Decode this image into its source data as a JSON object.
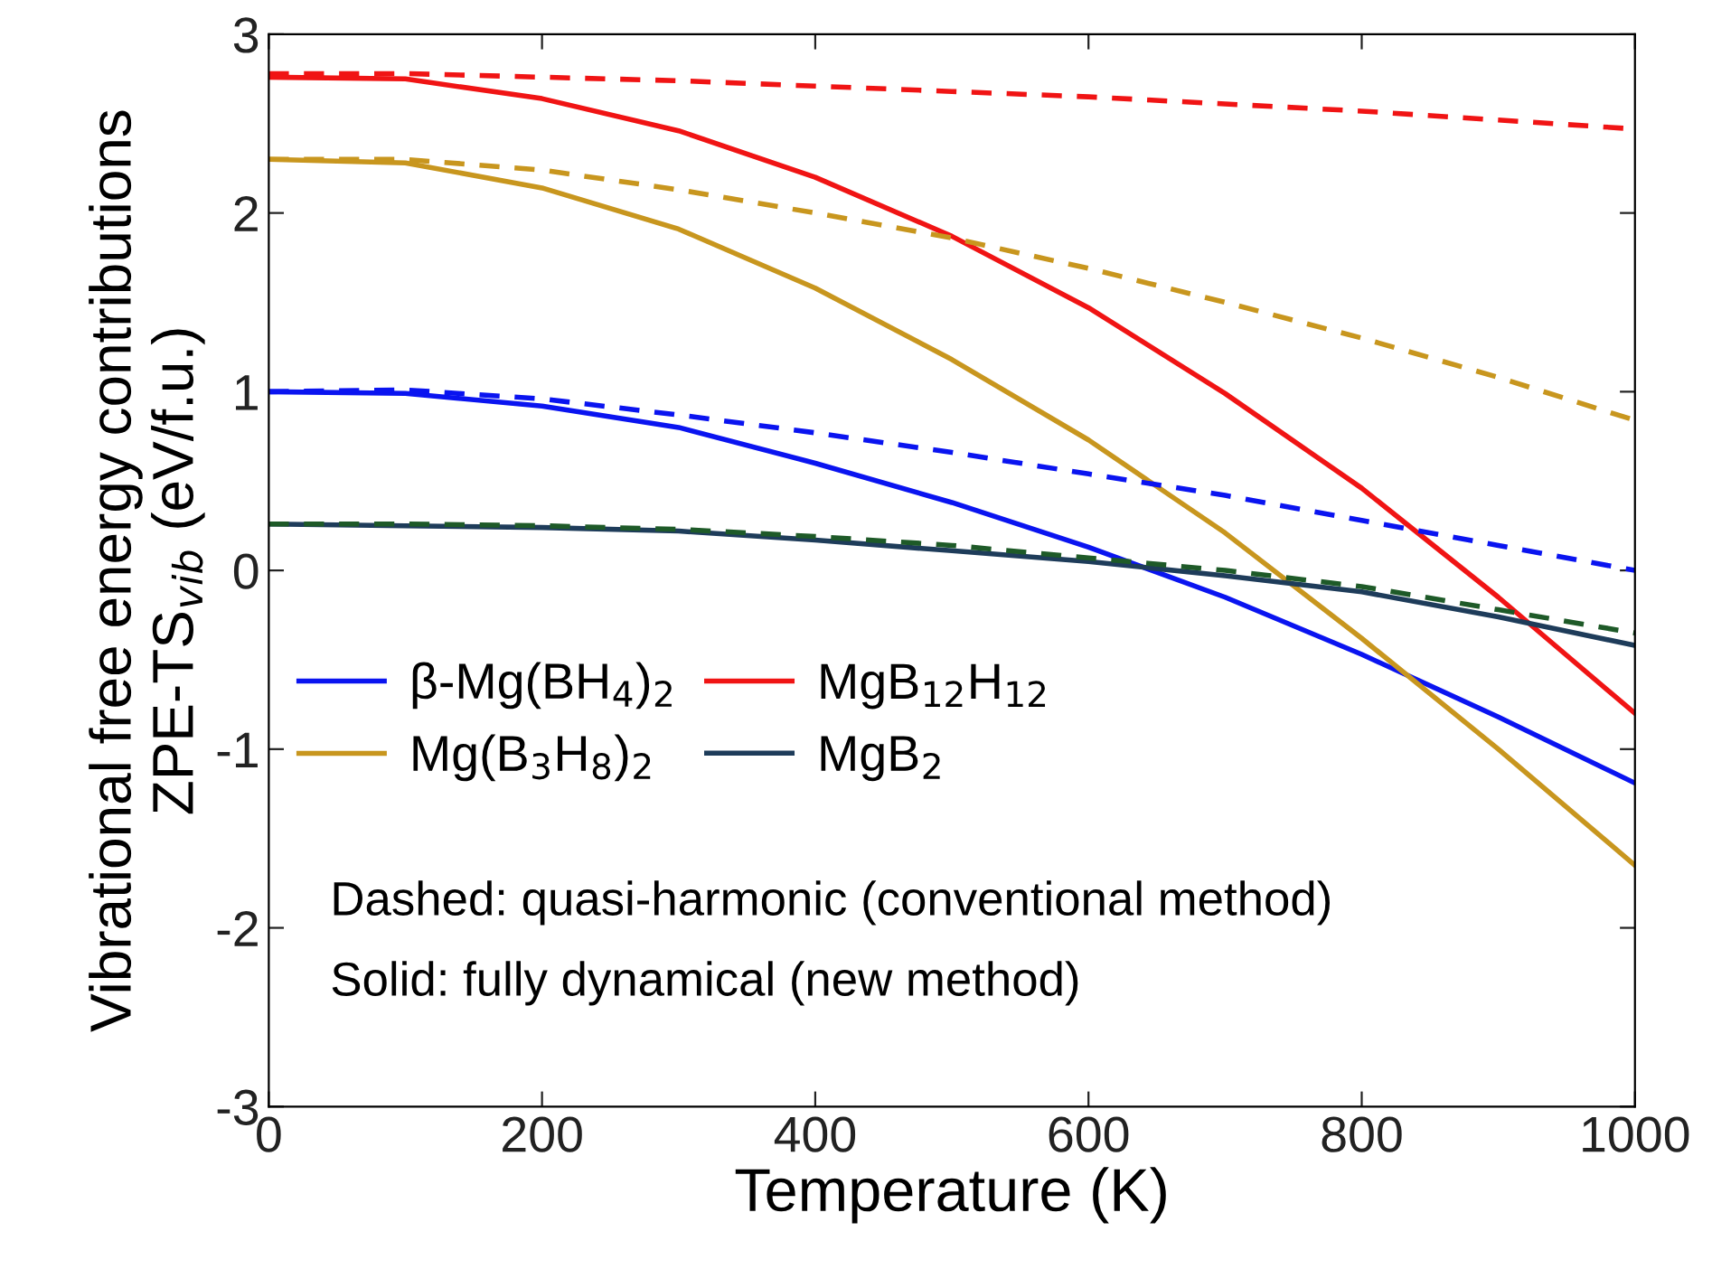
{
  "chart_data": {
    "type": "line",
    "xlabel": "Temperature (K)",
    "ylabel": "Vibrational free energy contributions\nZPE-TS$_{vib}$ (eV/f.u.)",
    "x": [
      0,
      100,
      200,
      300,
      400,
      500,
      600,
      700,
      800,
      900,
      1000
    ],
    "xlim": [
      0,
      1000
    ],
    "xticks": [
      0,
      200,
      400,
      600,
      800,
      1000
    ],
    "ylim": [
      -3,
      3
    ],
    "yticks": [
      -3,
      -2,
      -1,
      0,
      1,
      2,
      3
    ],
    "grid": false,
    "legend": "lower left",
    "marker": "none",
    "series": [
      {
        "name": "β-Mg(BH$_{4}$)$_{2}$",
        "color": "#0a14f0",
        "line_style": "solid",
        "values": [
          1.0,
          0.99,
          0.92,
          0.8,
          0.6,
          0.38,
          0.13,
          -0.15,
          -0.47,
          -0.82,
          -1.19
        ]
      },
      {
        "name": "Mg(B$_{3}$H$_{8}$)$_{2}$",
        "color": "#c8961e",
        "line_style": "solid",
        "values": [
          2.3,
          2.28,
          2.14,
          1.91,
          1.58,
          1.18,
          0.73,
          0.21,
          -0.38,
          -1.0,
          -1.65
        ]
      },
      {
        "name": "MgB$_{12}$H$_{12}$",
        "color": "#f01414",
        "line_style": "solid",
        "values": [
          2.76,
          2.75,
          2.64,
          2.46,
          2.2,
          1.87,
          1.47,
          0.99,
          0.46,
          -0.15,
          -0.8
        ]
      },
      {
        "name": "MgB$_{2}$",
        "color": "#1e3c5a",
        "line_style": "solid",
        "values": [
          0.26,
          0.25,
          0.24,
          0.22,
          0.17,
          0.11,
          0.05,
          -0.03,
          -0.12,
          -0.26,
          -0.42
        ]
      },
      {
        "color": "#0a14f0",
        "line_style": "dashed",
        "values": [
          1.0,
          1.01,
          0.96,
          0.87,
          0.77,
          0.66,
          0.54,
          0.42,
          0.28,
          0.14,
          0.0
        ]
      },
      {
        "color": "#c8961e",
        "line_style": "dashed",
        "values": [
          2.3,
          2.3,
          2.24,
          2.13,
          2.0,
          1.86,
          1.69,
          1.5,
          1.3,
          1.08,
          0.84
        ]
      },
      {
        "color": "#f01414",
        "line_style": "dashed",
        "values": [
          2.78,
          2.78,
          2.76,
          2.74,
          2.71,
          2.68,
          2.65,
          2.61,
          2.57,
          2.52,
          2.47
        ]
      },
      {
        "color": "#1e5a28",
        "line_style": "dashed",
        "values": [
          0.26,
          0.26,
          0.25,
          0.23,
          0.19,
          0.14,
          0.07,
          0.0,
          -0.09,
          -0.22,
          -0.35
        ]
      }
    ],
    "annotations": [
      "Dashed: quasi-harmonic (conventional method)",
      "Solid: fully dynamical (new method)"
    ]
  }
}
